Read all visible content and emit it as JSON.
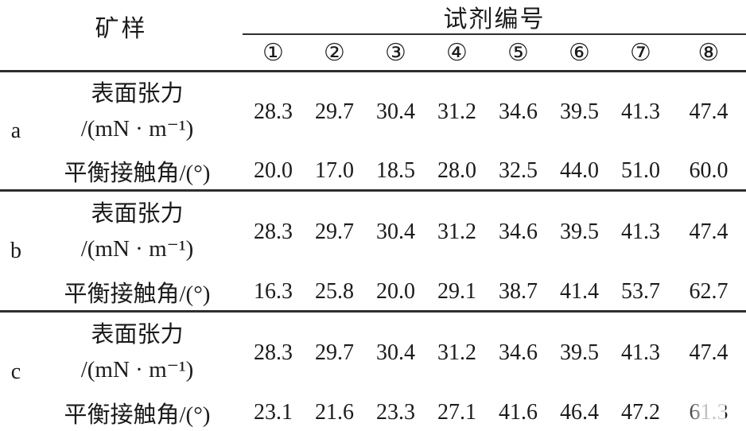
{
  "page": {
    "background": "#ffffff",
    "text_color": "#1b1b1b",
    "rule_color": "#2e2e2e"
  },
  "table": {
    "header": {
      "sample_label": "矿样",
      "reagent_group_label": "试剂编号",
      "reagent_ids": [
        "①",
        "②",
        "③",
        "④",
        "⑤",
        "⑥",
        "⑦",
        "⑧"
      ]
    },
    "row_labels": {
      "surface_tension_line1": "表面张力",
      "surface_tension_line2": "/(mN · m⁻¹)",
      "contact_angle": "平衡接触角/(°)"
    },
    "sections": [
      {
        "sample": "a",
        "surface_tension": [
          "28.3",
          "29.7",
          "30.4",
          "31.2",
          "34.6",
          "39.5",
          "41.3",
          "47.4"
        ],
        "contact_angle": [
          "20.0",
          "17.0",
          "18.5",
          "28.0",
          "32.5",
          "44.0",
          "51.0",
          "60.0"
        ]
      },
      {
        "sample": "b",
        "surface_tension": [
          "28.3",
          "29.7",
          "30.4",
          "31.2",
          "34.6",
          "39.5",
          "41.3",
          "47.4"
        ],
        "contact_angle": [
          "16.3",
          "25.8",
          "20.0",
          "29.1",
          "38.7",
          "41.4",
          "53.7",
          "62.7"
        ]
      },
      {
        "sample": "c",
        "surface_tension": [
          "28.3",
          "29.7",
          "30.4",
          "31.2",
          "34.6",
          "39.5",
          "41.3",
          "47.4"
        ],
        "contact_angle": [
          "23.1",
          "21.6",
          "23.3",
          "27.1",
          "41.6",
          "46.4",
          "47.2",
          "61.3"
        ]
      }
    ]
  }
}
